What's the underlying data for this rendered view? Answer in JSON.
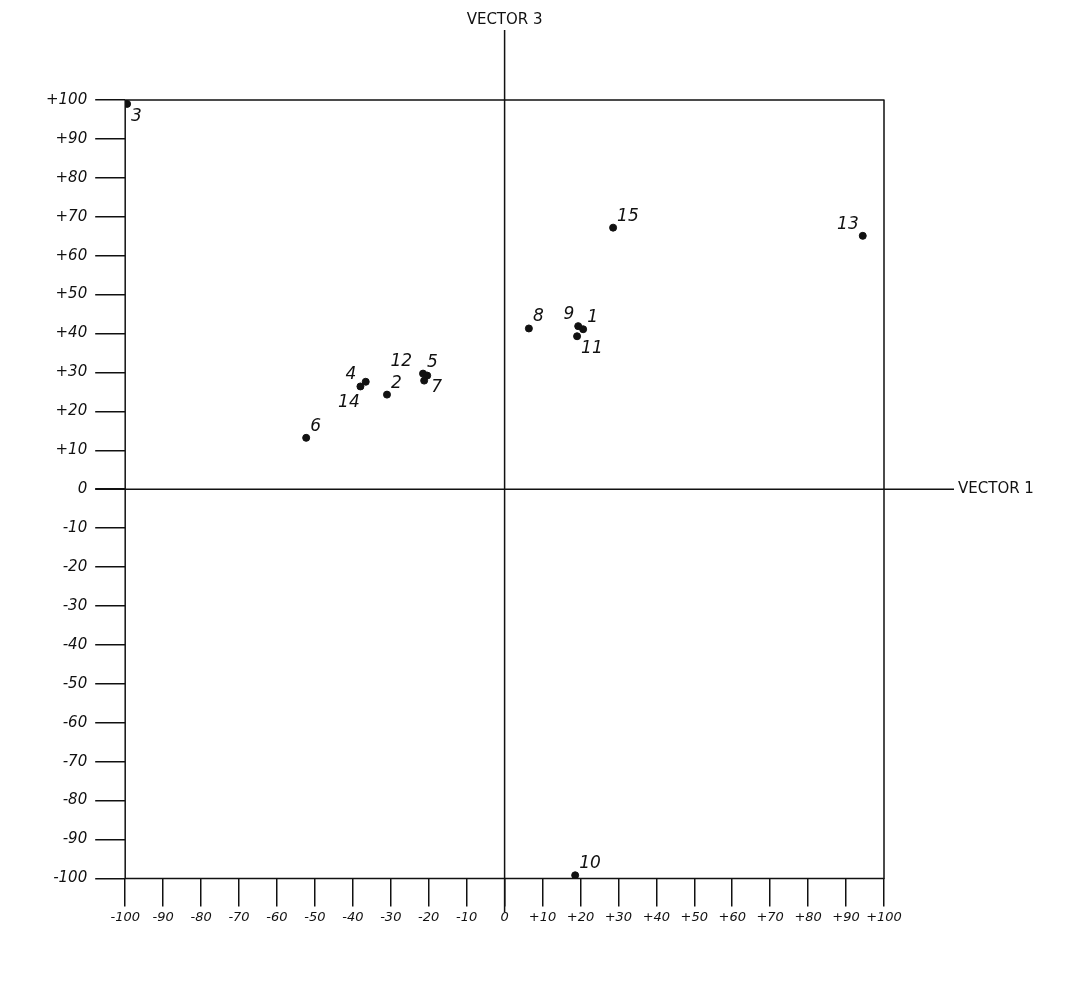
{
  "chart_data": {
    "type": "scatter",
    "ref_lines": [
      {
        "axis": "x",
        "value": 0,
        "label": "VECTOR 3"
      },
      {
        "axis": "y",
        "value": 0,
        "label": "VECTOR 1"
      }
    ],
    "x": [
      20.7,
      -31,
      -99.5,
      -38,
      -21.5,
      -52.3,
      -20.4,
      6.4,
      19.4,
      18.6,
      19.1,
      -21.2,
      94.4,
      -36.6,
      28.6
    ],
    "series": [
      {
        "color": "#111111",
        "values": [
          41.1,
          24.3,
          99,
          26.4,
          29.7,
          13.2,
          29.2,
          41.3,
          41.9,
          -99.2,
          39.3,
          27.9,
          65.1,
          27.6,
          67.2
        ]
      }
    ],
    "annotations": [
      {
        "text": "1",
        "x": 20.7,
        "y": 41.1
      },
      {
        "text": "2",
        "x": -31,
        "y": 24.3
      },
      {
        "text": "3",
        "x": -99.5,
        "y": 99
      },
      {
        "text": "4",
        "x": -38,
        "y": 26.4
      },
      {
        "text": "5",
        "x": -21.5,
        "y": 29.7
      },
      {
        "text": "6",
        "x": -52.3,
        "y": 13.2
      },
      {
        "text": "7",
        "x": -20.4,
        "y": 29.2
      },
      {
        "text": "8",
        "x": 6.4,
        "y": 41.3
      },
      {
        "text": "9",
        "x": 19.4,
        "y": 41.9
      },
      {
        "text": "10",
        "x": 18.6,
        "y": -99.2
      },
      {
        "text": "11",
        "x": 19.1,
        "y": 39.3
      },
      {
        "text": "12",
        "x": -21.2,
        "y": 27.9
      },
      {
        "text": "13",
        "x": 94.4,
        "y": 65.1
      },
      {
        "text": "14",
        "x": -36.6,
        "y": 27.6
      },
      {
        "text": "15",
        "x": 28.6,
        "y": 67.2
      }
    ],
    "xlim": [
      -100,
      100
    ],
    "xticks": [
      -100,
      -90,
      -80,
      -70,
      -60,
      -50,
      -40,
      -30,
      -20,
      -10,
      0,
      {
        "value": 10,
        "label": "+10"
      },
      {
        "value": 20,
        "label": "+20"
      },
      {
        "value": 30,
        "label": "+30"
      },
      {
        "value": 40,
        "label": "+40"
      },
      {
        "value": 50,
        "label": "+50"
      },
      {
        "value": 60,
        "label": "+60"
      },
      {
        "value": 70,
        "label": "+70"
      },
      {
        "value": 80,
        "label": "+80"
      },
      {
        "value": 90,
        "label": "+90"
      },
      {
        "value": 100,
        "label": "+100"
      }
    ],
    "ylim": [
      -100,
      100
    ],
    "yticks": [
      {
        "value": 100,
        "label": "+100"
      },
      {
        "value": 90,
        "label": "+90"
      },
      {
        "value": 80,
        "label": "+80"
      },
      {
        "value": 70,
        "label": "+70"
      },
      {
        "value": 60,
        "label": "+60"
      },
      {
        "value": 50,
        "label": "+50"
      },
      {
        "value": 40,
        "label": "+40"
      },
      {
        "value": 30,
        "label": "+30"
      },
      {
        "value": 20,
        "label": "+20"
      },
      {
        "value": 10,
        "label": "+10"
      },
      0,
      -10,
      -20,
      -30,
      -40,
      -50,
      -60,
      -70,
      -80,
      -90,
      -100
    ],
    "grid": false,
    "marker": "circle",
    "legend": false
  }
}
